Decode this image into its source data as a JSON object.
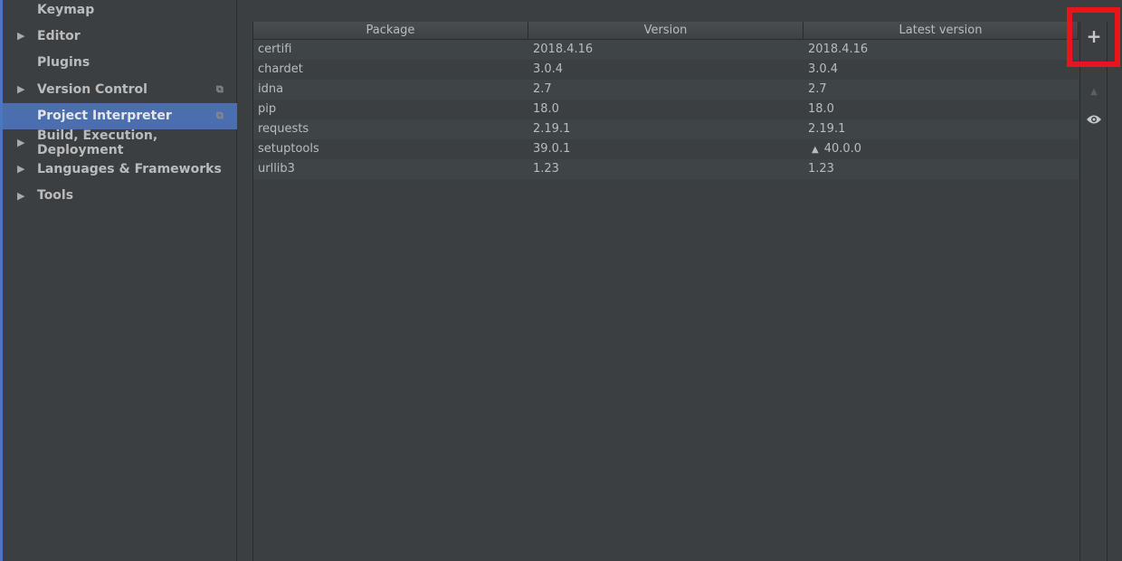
{
  "sidebar": {
    "items": [
      {
        "label": "Keymap",
        "expandable": false,
        "copy": false,
        "selected": false
      },
      {
        "label": "Editor",
        "expandable": true,
        "copy": false,
        "selected": false
      },
      {
        "label": "Plugins",
        "expandable": false,
        "copy": false,
        "selected": false
      },
      {
        "label": "Version Control",
        "expandable": true,
        "copy": true,
        "selected": false
      },
      {
        "label": "Project Interpreter",
        "expandable": false,
        "copy": true,
        "selected": true
      },
      {
        "label": "Build, Execution, Deployment",
        "expandable": true,
        "copy": false,
        "selected": false
      },
      {
        "label": "Languages & Frameworks",
        "expandable": true,
        "copy": false,
        "selected": false
      },
      {
        "label": "Tools",
        "expandable": true,
        "copy": false,
        "selected": false
      }
    ]
  },
  "table": {
    "headers": [
      "Package",
      "Version",
      "Latest version"
    ],
    "rows": [
      {
        "package": "certifi",
        "version": "2018.4.16",
        "latest": "2018.4.16",
        "upgrade": false
      },
      {
        "package": "chardet",
        "version": "3.0.4",
        "latest": "3.0.4",
        "upgrade": false
      },
      {
        "package": "idna",
        "version": "2.7",
        "latest": "2.7",
        "upgrade": false
      },
      {
        "package": "pip",
        "version": "18.0",
        "latest": "18.0",
        "upgrade": false
      },
      {
        "package": "requests",
        "version": "2.19.1",
        "latest": "2.19.1",
        "upgrade": false
      },
      {
        "package": "setuptools",
        "version": "39.0.1",
        "latest": "40.0.0",
        "upgrade": true
      },
      {
        "package": "urllib3",
        "version": "1.23",
        "latest": "1.23",
        "upgrade": false
      }
    ]
  },
  "toolbar": {
    "add": "+",
    "upgrade": "▲",
    "show": "👁"
  },
  "highlight_color": "#e8141e"
}
